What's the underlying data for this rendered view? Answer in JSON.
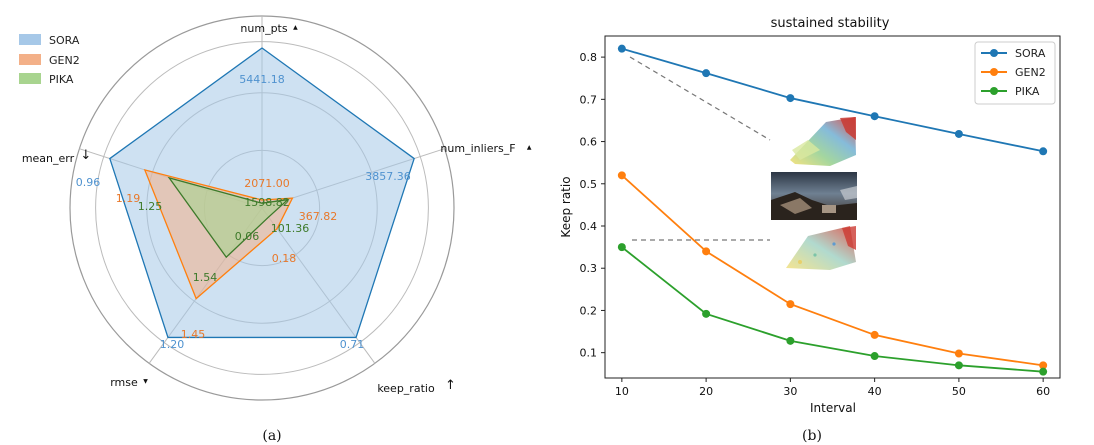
{
  "colors": {
    "SORA": "#1f77b4",
    "GEN2": "#ff7f0e",
    "PIKA": "#2ca02c",
    "SORA_fill": "#a6c8e8",
    "GEN2_fill": "#f3b088",
    "PIKA_fill": "#a8d48f"
  },
  "chart_data": [
    {
      "type": "radar",
      "caption": "(a)",
      "axes": [
        {
          "label": "num_pts",
          "arrow": "▲"
        },
        {
          "label": "num_inliers_F",
          "arrow": "▲"
        },
        {
          "label": "keep_ratio",
          "arrow": "↑"
        },
        {
          "label": "rmse",
          "arrow": "▼"
        },
        {
          "label": "mean_err",
          "arrow": "↓"
        }
      ],
      "legend": {
        "position": "top-left"
      },
      "series": [
        {
          "name": "SORA",
          "radius": [
            1.0,
            1.0,
            1.0,
            1.0,
            1.0
          ],
          "value_labels": [
            "5441.18",
            "3857.36",
            "0.71",
            "1.20",
            "0.96"
          ]
        },
        {
          "name": "GEN2",
          "radius": [
            0.05,
            0.2,
            0.16,
            0.7,
            0.77
          ],
          "value_labels": [
            "2071.00",
            "367.82",
            "0.18",
            "1.45",
            "1.19"
          ]
        },
        {
          "name": "PIKA",
          "radius": [
            0.03,
            0.17,
            0.07,
            0.38,
            0.61
          ],
          "value_labels": [
            "1598.82",
            "101.36",
            "0.06",
            "1.54",
            "1.25"
          ]
        }
      ]
    },
    {
      "type": "line",
      "caption": "(b)",
      "title": "sustained stability",
      "xlabel": "Interval",
      "ylabel": "Keep ratio",
      "x": [
        10,
        20,
        30,
        40,
        50,
        60
      ],
      "xlim": [
        8,
        62
      ],
      "ylim": [
        0.04,
        0.85
      ],
      "xticks": [
        10,
        20,
        30,
        40,
        50,
        60
      ],
      "yticks": [
        0.1,
        0.2,
        0.3,
        0.4,
        0.5,
        0.6,
        0.7,
        0.8
      ],
      "legend": {
        "position": "top-right"
      },
      "series": [
        {
          "name": "SORA",
          "values": [
            0.82,
            0.762,
            0.703,
            0.66,
            0.618,
            0.577
          ]
        },
        {
          "name": "GEN2",
          "values": [
            0.52,
            0.34,
            0.215,
            0.142,
            0.098,
            0.07
          ]
        },
        {
          "name": "PIKA",
          "values": [
            0.35,
            0.192,
            0.128,
            0.092,
            0.07,
            0.055
          ]
        }
      ],
      "insets": [
        "point-cloud-good",
        "scene-photo",
        "point-cloud-sparse"
      ]
    }
  ]
}
